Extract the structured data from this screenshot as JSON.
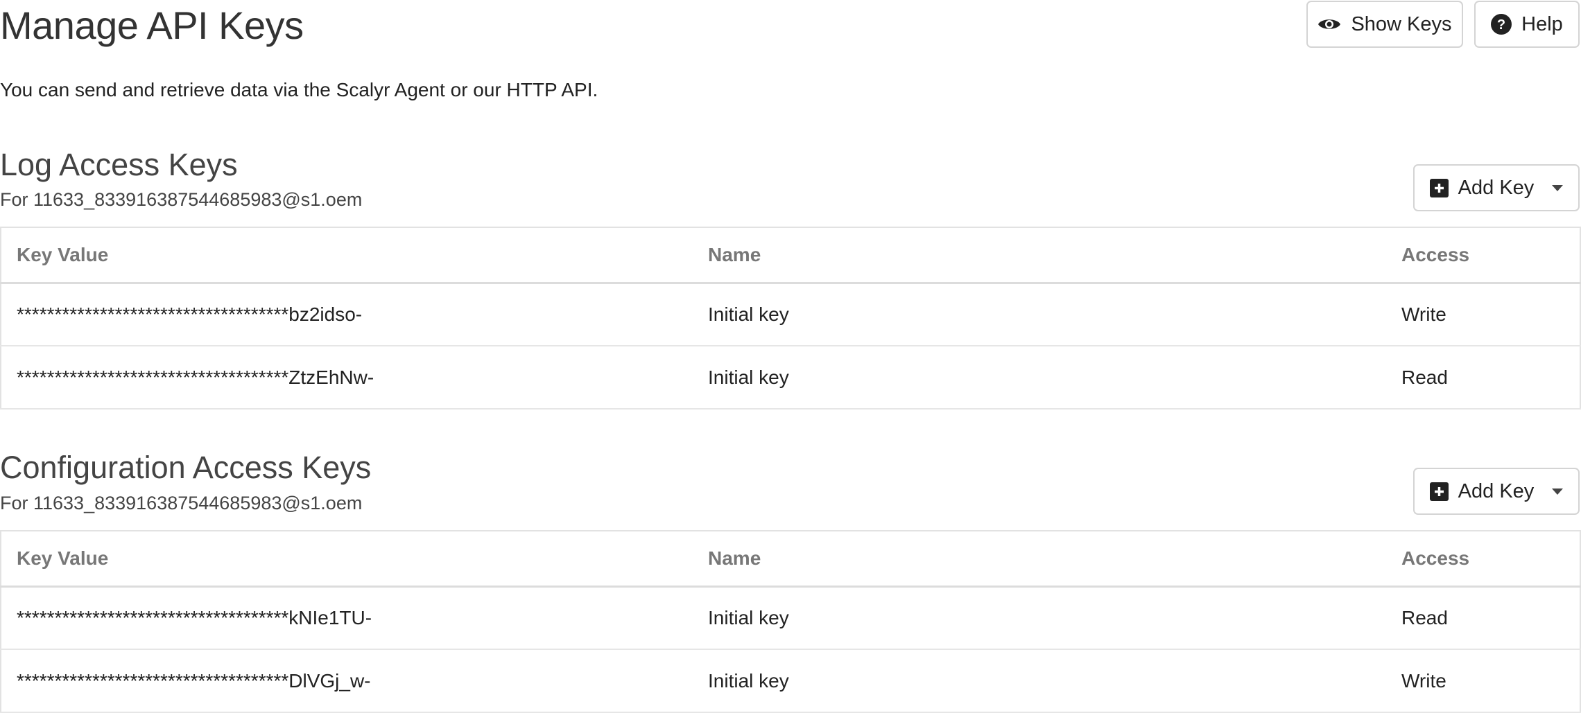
{
  "header": {
    "title": "Manage API Keys",
    "show_keys_label": "Show Keys",
    "help_label": "Help"
  },
  "intro": "You can send and retrieve data via the Scalyr Agent or our HTTP API.",
  "columns": [
    "Key Value",
    "Name",
    "Access"
  ],
  "sections": [
    {
      "title": "Log Access Keys",
      "subtitle": "For 11633_833916387544685983@s1.oem",
      "add_label": "Add Key",
      "rows": [
        {
          "key": "************************************bz2idso-",
          "name": "Initial key",
          "access": "Write"
        },
        {
          "key": "************************************ZtzEhNw-",
          "name": "Initial key",
          "access": "Read"
        }
      ]
    },
    {
      "title": "Configuration Access Keys",
      "subtitle": "For 11633_833916387544685983@s1.oem",
      "add_label": "Add Key",
      "rows": [
        {
          "key": "************************************kNIe1TU-",
          "name": "Initial key",
          "access": "Read"
        },
        {
          "key": "************************************DlVGj_w-",
          "name": "Initial key",
          "access": "Write"
        }
      ]
    }
  ]
}
